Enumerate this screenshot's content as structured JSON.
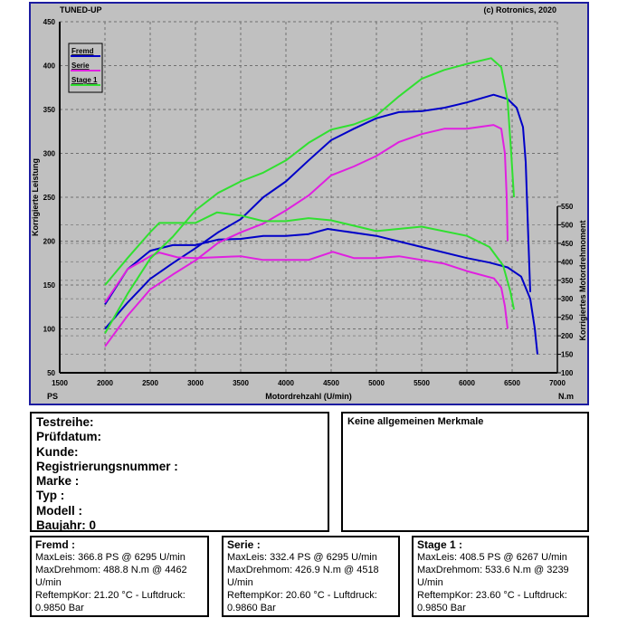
{
  "chart_data": {
    "type": "line",
    "title": "TUNED-UP",
    "copyright": "(c) Rotronics, 2020",
    "xlabel": "Motordrehzahl (U/min)",
    "ylabel_left": "Korrigierte Leistung",
    "ylabel_right": "Korrigiertes Motordrehmoment",
    "unit_left": "PS",
    "unit_right": "N.m",
    "xlim": [
      1500,
      7000
    ],
    "ylim_left": [
      50,
      450
    ],
    "ylim_right": [
      100,
      550
    ],
    "xticks": [
      1500,
      2000,
      2500,
      3000,
      3500,
      4000,
      4500,
      5000,
      5500,
      6000,
      6500,
      7000
    ],
    "yticks_left": [
      50,
      100,
      150,
      200,
      250,
      300,
      350,
      400,
      450
    ],
    "yticks_right": [
      100,
      150,
      200,
      250,
      300,
      350,
      400,
      450,
      500,
      550
    ],
    "grid": true,
    "legend_position": "top-left",
    "series": [
      {
        "name": "Fremd",
        "color": "#0000c8",
        "power": [
          [
            2000,
            100
          ],
          [
            2250,
            130
          ],
          [
            2500,
            157
          ],
          [
            2750,
            175
          ],
          [
            3000,
            192
          ],
          [
            3250,
            210
          ],
          [
            3500,
            225
          ],
          [
            3750,
            250
          ],
          [
            4000,
            268
          ],
          [
            4250,
            292
          ],
          [
            4500,
            315
          ],
          [
            4750,
            328
          ],
          [
            5000,
            340
          ],
          [
            5250,
            347
          ],
          [
            5500,
            348
          ],
          [
            5750,
            352
          ],
          [
            6000,
            358
          ],
          [
            6295,
            366.8
          ],
          [
            6450,
            362
          ],
          [
            6550,
            352
          ],
          [
            6620,
            330
          ],
          [
            6650,
            290
          ],
          [
            6680,
            200
          ],
          [
            6700,
            142
          ]
        ],
        "torque": [
          [
            2000,
            285
          ],
          [
            2250,
            380
          ],
          [
            2500,
            430
          ],
          [
            2750,
            445
          ],
          [
            3000,
            445
          ],
          [
            3250,
            460
          ],
          [
            3500,
            462
          ],
          [
            3750,
            470
          ],
          [
            4000,
            470
          ],
          [
            4250,
            475
          ],
          [
            4462,
            488.8
          ],
          [
            5000,
            470
          ],
          [
            5500,
            440
          ],
          [
            6000,
            410
          ],
          [
            6250,
            398
          ],
          [
            6450,
            385
          ],
          [
            6600,
            360
          ],
          [
            6700,
            300
          ],
          [
            6750,
            220
          ],
          [
            6780,
            150
          ]
        ]
      },
      {
        "name": "Serie",
        "color": "#e020e0",
        "power": [
          [
            2000,
            80
          ],
          [
            2250,
            115
          ],
          [
            2500,
            145
          ],
          [
            2750,
            162
          ],
          [
            3000,
            178
          ],
          [
            3250,
            198
          ],
          [
            3500,
            210
          ],
          [
            3750,
            220
          ],
          [
            4000,
            235
          ],
          [
            4250,
            252
          ],
          [
            4500,
            275
          ],
          [
            4750,
            285
          ],
          [
            5000,
            297
          ],
          [
            5250,
            313
          ],
          [
            5500,
            322
          ],
          [
            5750,
            328
          ],
          [
            6000,
            328
          ],
          [
            6295,
            332.4
          ],
          [
            6380,
            328
          ],
          [
            6420,
            300
          ],
          [
            6440,
            250
          ],
          [
            6450,
            200
          ]
        ],
        "torque": [
          [
            2000,
            290
          ],
          [
            2250,
            380
          ],
          [
            2500,
            415
          ],
          [
            2600,
            425
          ],
          [
            2800,
            412
          ],
          [
            3000,
            410
          ],
          [
            3500,
            415
          ],
          [
            3750,
            405
          ],
          [
            4000,
            405
          ],
          [
            4250,
            405
          ],
          [
            4518,
            426.9
          ],
          [
            4750,
            410
          ],
          [
            5000,
            410
          ],
          [
            5250,
            415
          ],
          [
            5500,
            405
          ],
          [
            5750,
            395
          ],
          [
            6000,
            375
          ],
          [
            6300,
            355
          ],
          [
            6380,
            330
          ],
          [
            6420,
            280
          ],
          [
            6450,
            219
          ]
        ]
      },
      {
        "name": "Stage 1",
        "color": "#30e030",
        "power": [
          [
            2000,
            95
          ],
          [
            2250,
            140
          ],
          [
            2500,
            180
          ],
          [
            2750,
            205
          ],
          [
            3000,
            235
          ],
          [
            3250,
            255
          ],
          [
            3500,
            268
          ],
          [
            3750,
            278
          ],
          [
            4000,
            292
          ],
          [
            4250,
            312
          ],
          [
            4500,
            327
          ],
          [
            4750,
            333
          ],
          [
            5000,
            343
          ],
          [
            5250,
            365
          ],
          [
            5500,
            385
          ],
          [
            5750,
            395
          ],
          [
            6000,
            402
          ],
          [
            6267,
            408.5
          ],
          [
            6380,
            398
          ],
          [
            6450,
            360
          ],
          [
            6490,
            300
          ],
          [
            6520,
            250
          ]
        ],
        "torque": [
          [
            2000,
            337
          ],
          [
            2250,
            410
          ],
          [
            2500,
            480
          ],
          [
            2600,
            505
          ],
          [
            3000,
            505
          ],
          [
            3239,
            533.6
          ],
          [
            3500,
            525
          ],
          [
            3750,
            510
          ],
          [
            4000,
            510
          ],
          [
            4250,
            518
          ],
          [
            4500,
            512
          ],
          [
            5000,
            483
          ],
          [
            5500,
            495
          ],
          [
            6000,
            470
          ],
          [
            6250,
            440
          ],
          [
            6400,
            390
          ],
          [
            6480,
            320
          ],
          [
            6520,
            271
          ]
        ]
      }
    ]
  },
  "info": {
    "lines": [
      "Testreihe:",
      "Prüfdatum:",
      "Kunde:",
      "Registrierungsnummer  :",
      "Marke  :",
      "Typ  :",
      "Modell  :",
      "Baujahr: 0"
    ],
    "notes": "Keine allgemeinen Merkmale"
  },
  "results": [
    {
      "title": "Fremd :",
      "maxleis": "MaxLeis: 366.8 PS @ 6295 U/min",
      "maxdreh": "MaxDrehmom: 488.8 N.m @ 4462 U/min",
      "reftemp": "ReftempKor: 21.20 °C - Luftdruck: 0.9850 Bar"
    },
    {
      "title": "Serie :",
      "maxleis": "MaxLeis: 332.4 PS @ 6295 U/min",
      "maxdreh": "MaxDrehmom: 426.9 N.m @ 4518 U/min",
      "reftemp": "ReftempKor: 20.60 °C - Luftdruck: 0.9860 Bar"
    },
    {
      "title": "Stage 1 :",
      "maxleis": "MaxLeis: 408.5 PS @ 6267 U/min",
      "maxdreh": "MaxDrehmom: 533.6 N.m @ 3239 U/min",
      "reftemp": "ReftempKor: 23.60 °C - Luftdruck: 0.9850 Bar"
    }
  ]
}
